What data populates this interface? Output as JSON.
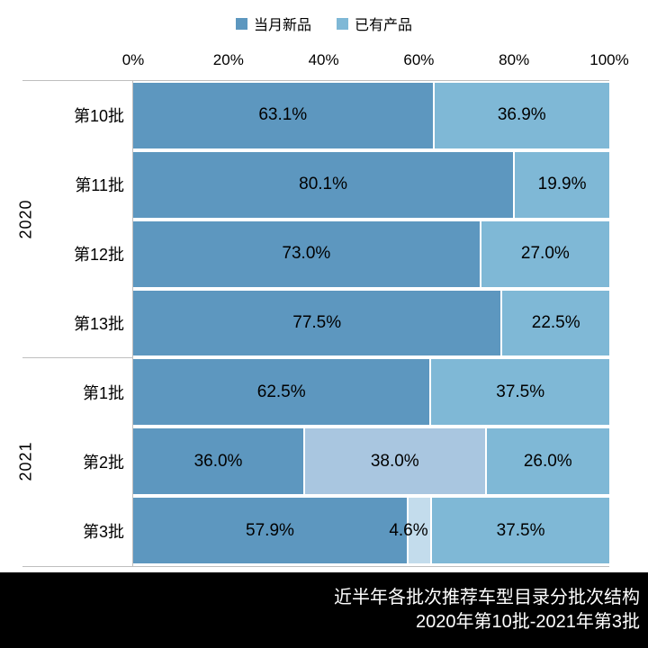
{
  "legend": {
    "items": [
      {
        "label": "当月新品",
        "color": "#5d97bf"
      },
      {
        "label": "已有产品",
        "color": "#7fb8d6"
      }
    ]
  },
  "x_axis": {
    "tick_labels": [
      "0%",
      "20%",
      "40%",
      "60%",
      "80%",
      "100%"
    ],
    "min": 0,
    "max": 100
  },
  "chart_data": {
    "type": "bar",
    "orientation": "horizontal",
    "stacked": true,
    "x_range": [
      0,
      100
    ],
    "legend_position": "top-center",
    "series_names": [
      "当月新品",
      "已有产品"
    ],
    "groups": [
      {
        "label": "2020",
        "rows": [
          {
            "category": "第10批",
            "segments": [
              {
                "series": "当月新品",
                "value": 63.1,
                "label": "63.1%",
                "color": "#5d97bf"
              },
              {
                "series": "已有产品",
                "value": 36.9,
                "label": "36.9%",
                "color": "#7fb8d6"
              }
            ]
          },
          {
            "category": "第11批",
            "segments": [
              {
                "series": "当月新品",
                "value": 80.1,
                "label": "80.1%",
                "color": "#5d97bf"
              },
              {
                "series": "已有产品",
                "value": 19.9,
                "label": "19.9%",
                "color": "#7fb8d6"
              }
            ]
          },
          {
            "category": "第12批",
            "segments": [
              {
                "series": "当月新品",
                "value": 73.0,
                "label": "73.0%",
                "color": "#5d97bf"
              },
              {
                "series": "已有产品",
                "value": 27.0,
                "label": "27.0%",
                "color": "#7fb8d6"
              }
            ]
          },
          {
            "category": "第13批",
            "segments": [
              {
                "series": "当月新品",
                "value": 77.5,
                "label": "77.5%",
                "color": "#5d97bf"
              },
              {
                "series": "已有产品",
                "value": 22.5,
                "label": "22.5%",
                "color": "#7fb8d6"
              }
            ]
          }
        ]
      },
      {
        "label": "2021",
        "rows": [
          {
            "category": "第1批",
            "segments": [
              {
                "series": "当月新品",
                "value": 62.5,
                "label": "62.5%",
                "color": "#5d97bf"
              },
              {
                "series": "已有产品",
                "value": 37.5,
                "label": "37.5%",
                "color": "#7fb8d6"
              }
            ]
          },
          {
            "category": "第2批",
            "segments": [
              {
                "series": "当月新品",
                "value": 36.0,
                "label": "36.0%",
                "color": "#5d97bf"
              },
              {
                "value": 38.0,
                "label": "38.0%",
                "color": "#a9c6e0"
              },
              {
                "series": "已有产品",
                "value": 26.0,
                "label": "26.0%",
                "color": "#7fb8d6"
              }
            ]
          },
          {
            "category": "第3批",
            "segments": [
              {
                "series": "当月新品",
                "value": 57.9,
                "label": "57.9%",
                "color": "#5d97bf"
              },
              {
                "value": 4.6,
                "label": "4.6%",
                "color": "#c3dcec"
              },
              {
                "series": "已有产品",
                "value": 37.5,
                "label": "37.5%",
                "color": "#7fb8d6"
              }
            ]
          }
        ]
      }
    ],
    "title": "近半年各批次推荐车型目录分批次结构 2020年第10批-2021年第3批"
  },
  "caption": {
    "line1": "近半年各批次推荐车型目录分批次结构",
    "line2": "2020年第10批-2021年第3批",
    "bg": "#000000",
    "text_color": "#ffffff"
  },
  "colors": {
    "axis_line": "#bfbfbf",
    "label_text": "#000000"
  }
}
